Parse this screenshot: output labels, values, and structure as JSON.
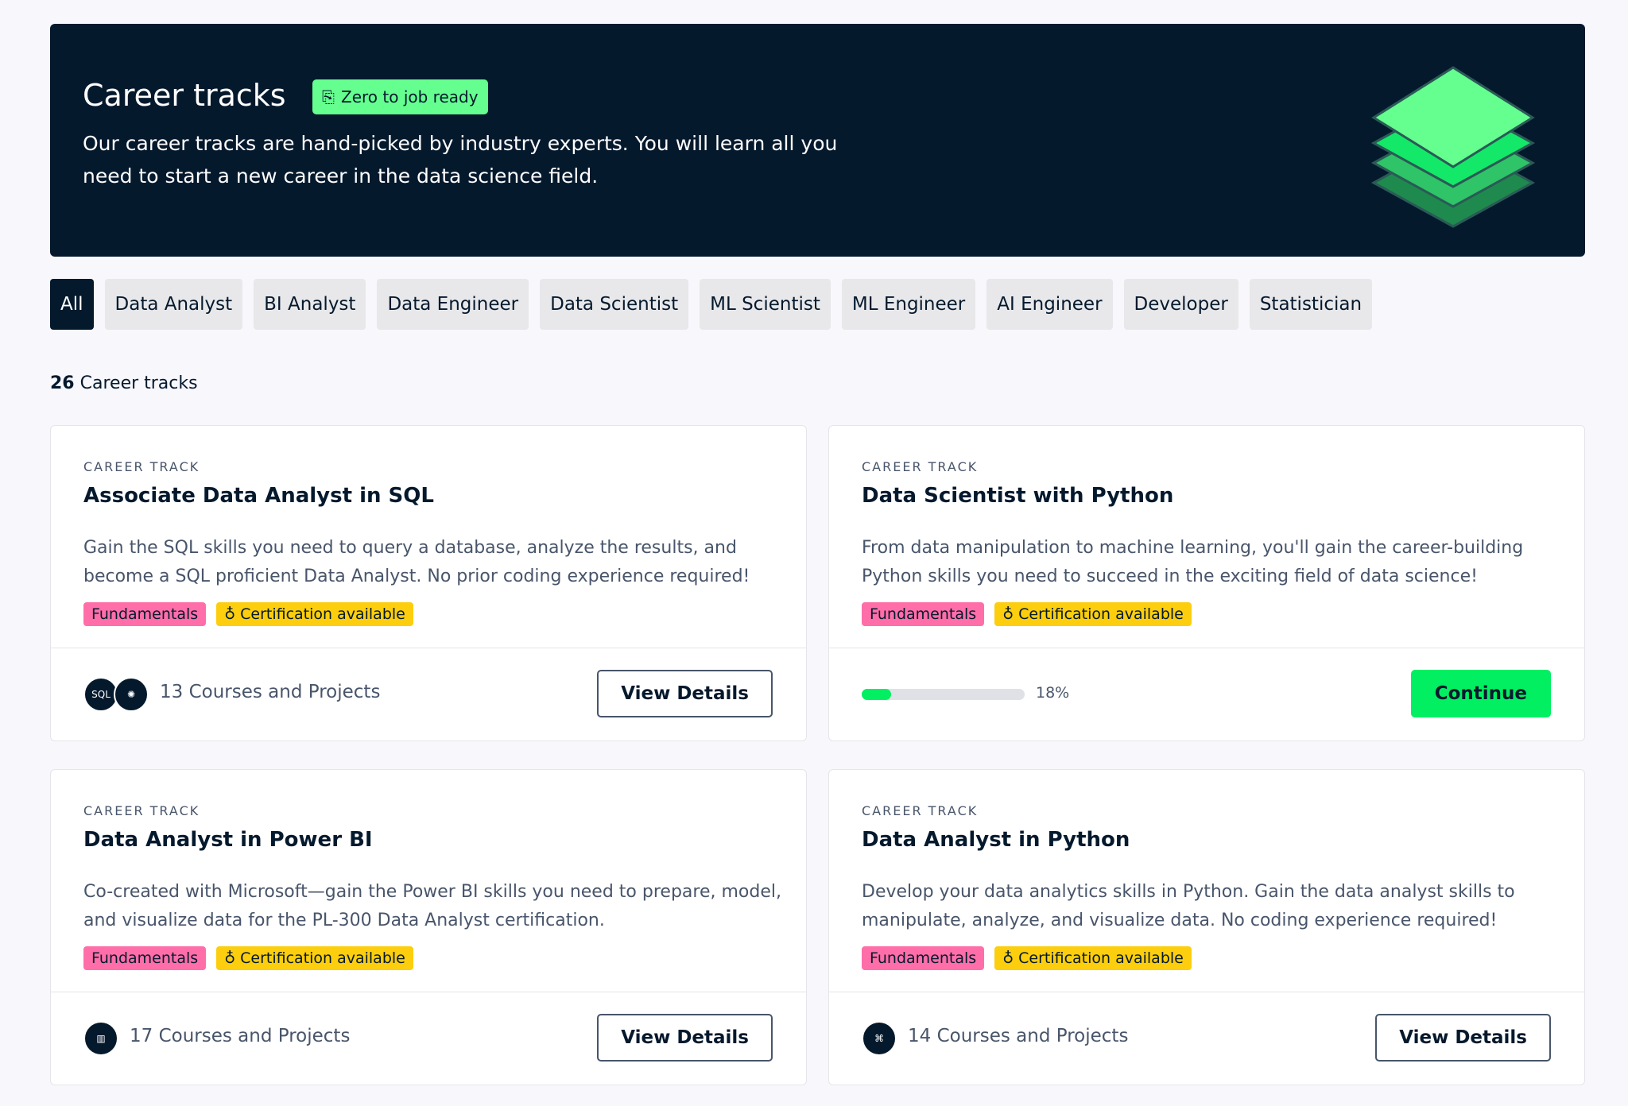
{
  "hero": {
    "title": "Career tracks",
    "badge": "Zero to job ready",
    "description": "Our career tracks are hand-picked by industry experts. You will learn all you need to start a new career in the data science field.",
    "icon": "layers-icon"
  },
  "filters": [
    {
      "label": "All",
      "active": true
    },
    {
      "label": "Data Analyst"
    },
    {
      "label": "BI Analyst"
    },
    {
      "label": "Data Engineer"
    },
    {
      "label": "Data Scientist"
    },
    {
      "label": "ML Scientist"
    },
    {
      "label": "ML Engineer"
    },
    {
      "label": "AI Engineer"
    },
    {
      "label": "Developer"
    },
    {
      "label": "Statistician"
    }
  ],
  "count": {
    "number": "26",
    "label": "Career tracks"
  },
  "cards": [
    {
      "kind": "CAREER TRACK",
      "title": "Associate Data Analyst in SQL",
      "description": "Gain the SQL skills you need to query a database, analyze the results, and become a SQL proficient Data Analyst. No prior coding experience required!",
      "tags": [
        "Fundamentals",
        "Certification available"
      ],
      "icons": [
        "SQL",
        "brain"
      ],
      "courses": "13 Courses and Projects",
      "button": "View Details"
    },
    {
      "kind": "CAREER TRACK",
      "title": "Data Scientist with Python",
      "description": "From data manipulation to machine learning, you'll gain the career-building Python skills you need to succeed in the exciting field of data science!",
      "tags": [
        "Fundamentals",
        "Certification available"
      ],
      "progress": 18,
      "progress_label": "18%",
      "button": "Continue"
    },
    {
      "kind": "CAREER TRACK",
      "title": "Data Analyst in Power BI",
      "description": "Co-created with Microsoft—gain the Power BI skills you need to prepare, model, and visualize data for the PL-300 Data Analyst certification.",
      "tags": [
        "Fundamentals",
        "Certification available"
      ],
      "icons": [
        "power-bi"
      ],
      "courses": "17 Courses and Projects",
      "button": "View Details"
    },
    {
      "kind": "CAREER TRACK",
      "title": "Data Analyst in Python",
      "description": "Develop your data analytics skills in Python. Gain the data analyst skills to manipulate, analyze, and visualize data. No coding experience required!",
      "tags": [
        "Fundamentals",
        "Certification available"
      ],
      "icons": [
        "python"
      ],
      "courses": "14 Courses and Projects",
      "button": "View Details"
    }
  ],
  "colors": {
    "navy": "#05192d",
    "green": "#03ef62",
    "pink": "#ff6ea9",
    "yellow": "#fcce0d"
  }
}
